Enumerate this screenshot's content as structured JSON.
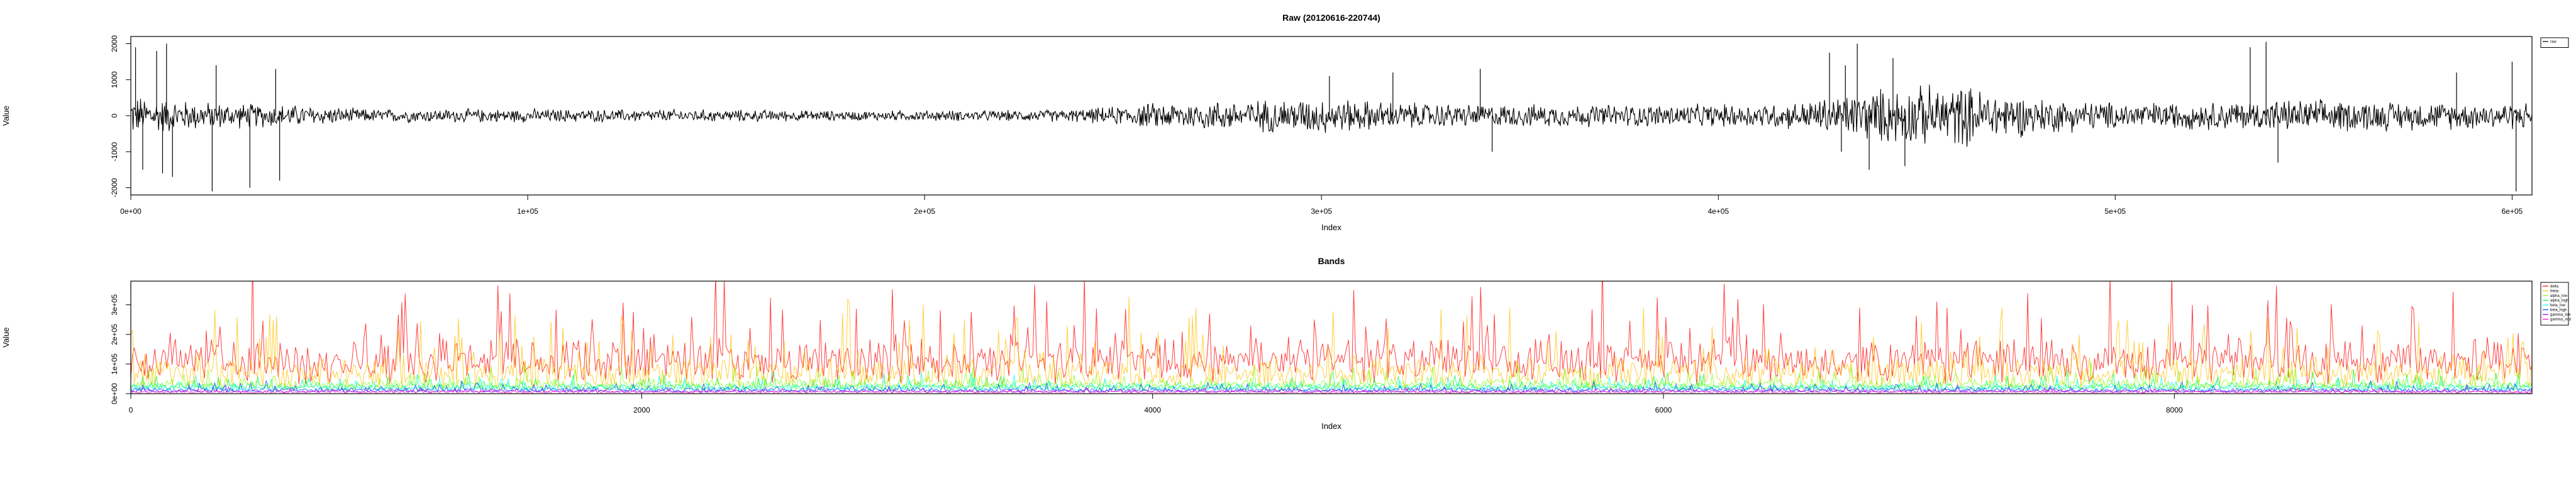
{
  "chart_data": [
    {
      "type": "line",
      "title": "Raw (20120616-220744)",
      "xlabel": "Index",
      "ylabel": "Value",
      "xlim": [
        0,
        605000
      ],
      "ylim": [
        -2200,
        2200
      ],
      "x_ticks": [
        0,
        100000,
        200000,
        300000,
        400000,
        500000,
        600000
      ],
      "x_tick_labels": [
        "0e+00",
        "1e+05",
        "2e+05",
        "3e+05",
        "4e+05",
        "5e+05",
        "6e+05"
      ],
      "y_ticks": [
        -2000,
        -1000,
        0,
        1000,
        2000
      ],
      "y_tick_labels": [
        "-2000",
        "-1000",
        "0",
        "1000",
        "2000"
      ],
      "grid": false,
      "legend_position": "top-right",
      "series": [
        {
          "name": "raw",
          "color": "#000000",
          "envelope": {
            "x": [
              0,
              20000,
              40000,
              60000,
              80000,
              100000,
              120000,
              140000,
              160000,
              180000,
              200000,
              220000,
              240000,
              260000,
              280000,
              300000,
              320000,
              340000,
              360000,
              380000,
              400000,
              420000,
              440000,
              460000,
              480000,
              500000,
              520000,
              540000,
              560000,
              580000,
              600000
            ],
            "upper": [
              450,
              300,
              250,
              150,
              150,
              150,
              140,
              140,
              130,
              110,
              120,
              120,
              150,
              300,
              350,
              400,
              300,
              250,
              250,
              250,
              250,
              300,
              600,
              700,
              400,
              300,
              300,
              350,
              350,
              300,
              300
            ],
            "lower": [
              -450,
              -300,
              -250,
              -150,
              -150,
              -150,
              -140,
              -140,
              -130,
              -110,
              -120,
              -120,
              -150,
              -300,
              -350,
              -400,
              -300,
              -250,
              -250,
              -250,
              -250,
              -300,
              -600,
              -700,
              -400,
              -300,
              -300,
              -350,
              -350,
              -300,
              -300
            ]
          },
          "spikes": [
            {
              "x": 1200,
              "y": 1900
            },
            {
              "x": 3000,
              "y": -1500
            },
            {
              "x": 6500,
              "y": 1800
            },
            {
              "x": 8000,
              "y": -1600
            },
            {
              "x": 9000,
              "y": 2000
            },
            {
              "x": 10500,
              "y": -1700
            },
            {
              "x": 20500,
              "y": -2100
            },
            {
              "x": 21500,
              "y": 1400
            },
            {
              "x": 30000,
              "y": -2000
            },
            {
              "x": 36500,
              "y": 1300
            },
            {
              "x": 37500,
              "y": -1800
            },
            {
              "x": 302000,
              "y": 1100
            },
            {
              "x": 318000,
              "y": 1200
            },
            {
              "x": 340000,
              "y": 1300
            },
            {
              "x": 343000,
              "y": -1000
            },
            {
              "x": 428000,
              "y": 1750
            },
            {
              "x": 431000,
              "y": -1000
            },
            {
              "x": 432000,
              "y": 1400
            },
            {
              "x": 435000,
              "y": 2000
            },
            {
              "x": 438000,
              "y": -1500
            },
            {
              "x": 444000,
              "y": 1600
            },
            {
              "x": 447000,
              "y": -1400
            },
            {
              "x": 534000,
              "y": 1900
            },
            {
              "x": 538000,
              "y": 2050
            },
            {
              "x": 541000,
              "y": -1300
            },
            {
              "x": 586000,
              "y": 1200
            },
            {
              "x": 600000,
              "y": 1500
            },
            {
              "x": 601000,
              "y": -2100
            }
          ]
        }
      ]
    },
    {
      "type": "line",
      "title": "Bands",
      "xlabel": "Index",
      "ylabel": "Value",
      "xlim": [
        0,
        9400
      ],
      "ylim": [
        0,
        380000
      ],
      "x_ticks": [
        0,
        2000,
        4000,
        6000,
        8000
      ],
      "x_tick_labels": [
        "0",
        "2000",
        "4000",
        "6000",
        "8000"
      ],
      "y_ticks": [
        0,
        100000,
        200000,
        300000
      ],
      "y_tick_labels": [
        "0e+00",
        "1e+05",
        "2e+05",
        "3e+05"
      ],
      "grid": false,
      "legend_position": "top-right",
      "series": [
        {
          "name": "delta",
          "color": "#FF0000",
          "base": 90000,
          "spread": 260000
        },
        {
          "name": "theta",
          "color": "#FFBF00",
          "base": 45000,
          "spread": 200000
        },
        {
          "name": "alpha_low",
          "color": "#80FF00",
          "base": 30000,
          "spread": 90000
        },
        {
          "name": "alpha_high",
          "color": "#00FF40",
          "base": 22000,
          "spread": 70000
        },
        {
          "name": "beta_low",
          "color": "#00FFFF",
          "base": 18000,
          "spread": 60000
        },
        {
          "name": "beta_high",
          "color": "#0040FF",
          "base": 12000,
          "spread": 40000
        },
        {
          "name": "gamma_low",
          "color": "#8000FF",
          "base": 8000,
          "spread": 25000
        },
        {
          "name": "gamma_mid",
          "color": "#FF00BF",
          "base": 5000,
          "spread": 18000
        }
      ]
    }
  ]
}
